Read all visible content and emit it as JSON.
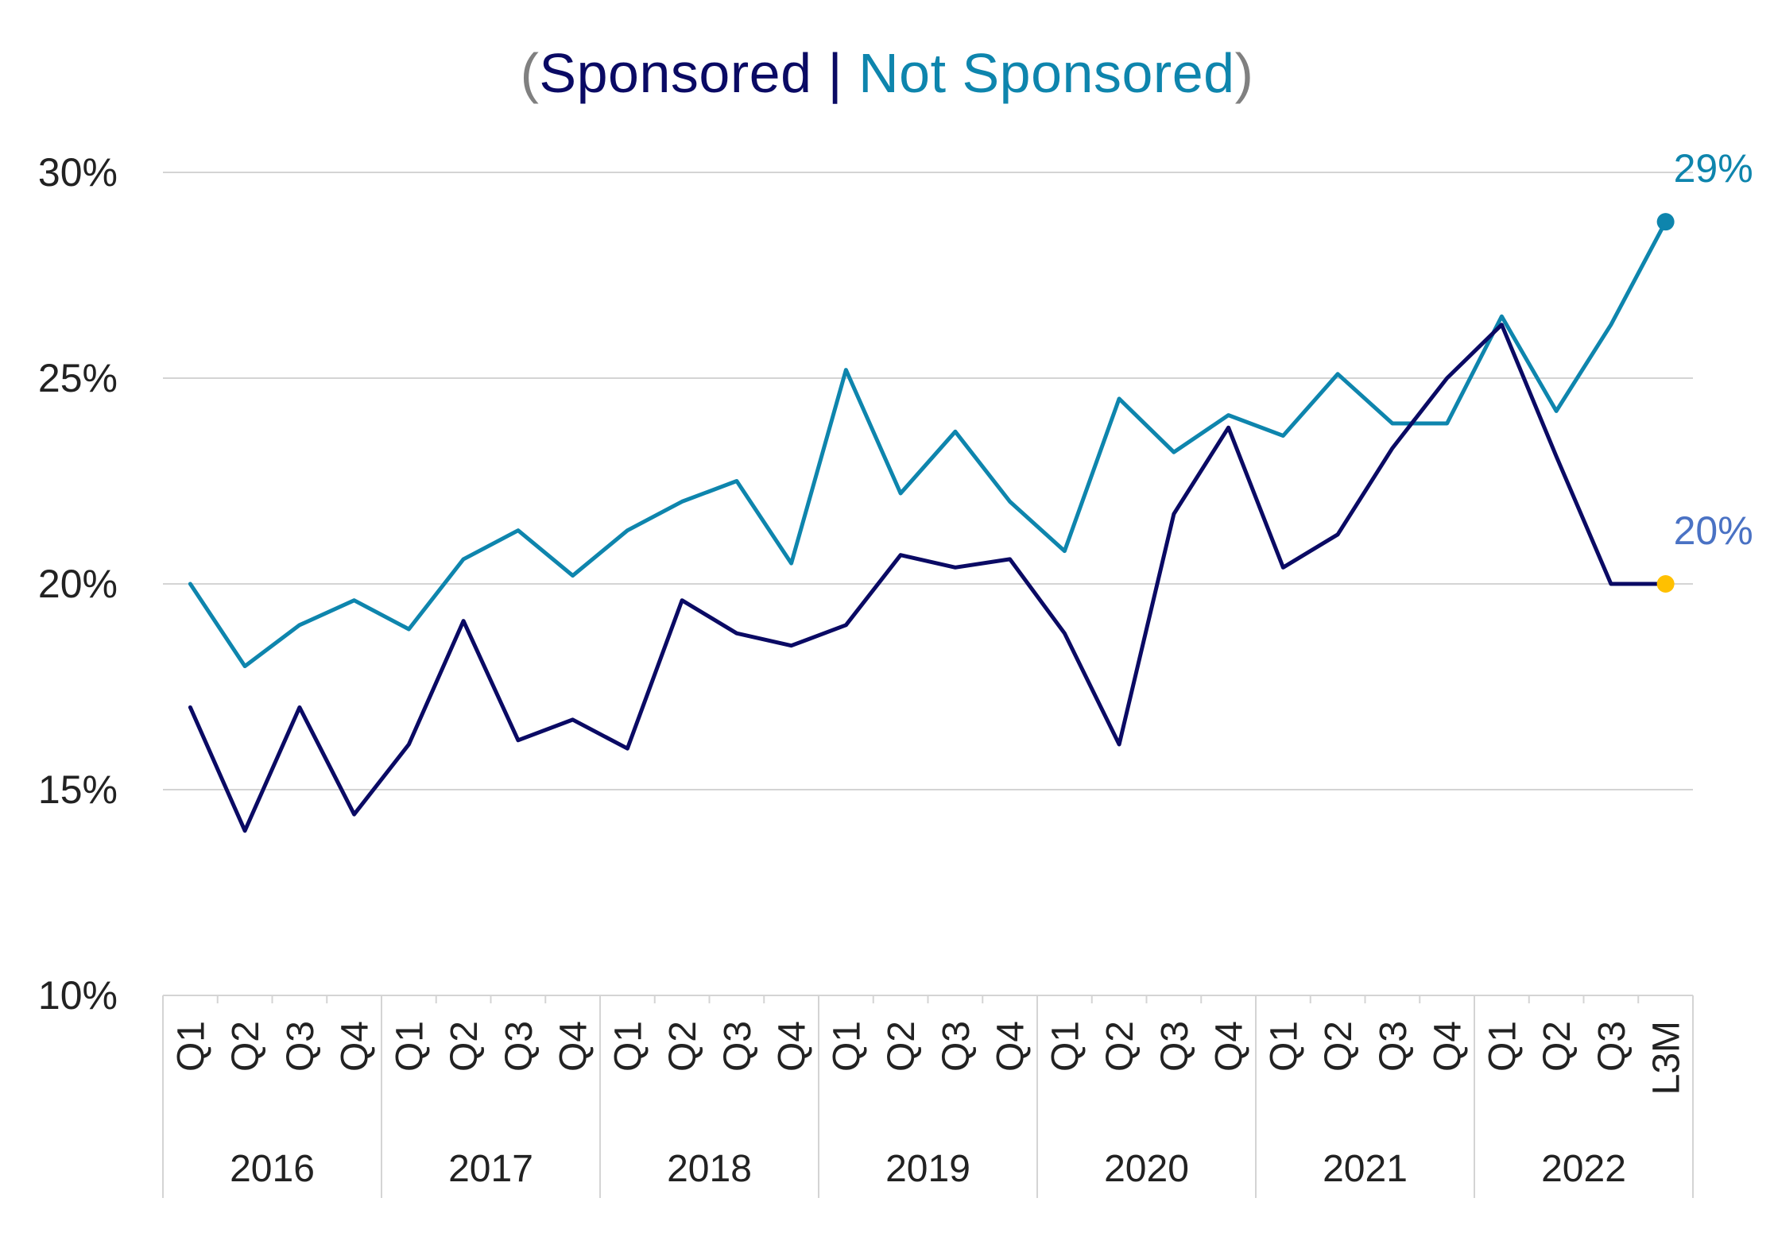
{
  "chart_data": {
    "type": "line",
    "title": {
      "open": "(",
      "series_a": "Sponsored",
      "sep": " | ",
      "series_b": "Not Sponsored",
      "close": ")"
    },
    "ylim": [
      10,
      30
    ],
    "yticks": [
      "10%",
      "15%",
      "20%",
      "25%",
      "30%"
    ],
    "ytick_values": [
      10,
      15,
      20,
      25,
      30
    ],
    "grid": true,
    "categories": [
      "Q1",
      "Q2",
      "Q3",
      "Q4",
      "Q1",
      "Q2",
      "Q3",
      "Q4",
      "Q1",
      "Q2",
      "Q3",
      "Q4",
      "Q1",
      "Q2",
      "Q3",
      "Q4",
      "Q1",
      "Q2",
      "Q3",
      "Q4",
      "Q1",
      "Q2",
      "Q3",
      "Q4",
      "Q1",
      "Q2",
      "Q3",
      "L3M"
    ],
    "groups": [
      {
        "label": "2016",
        "count": 4
      },
      {
        "label": "2017",
        "count": 4
      },
      {
        "label": "2018",
        "count": 4
      },
      {
        "label": "2019",
        "count": 4
      },
      {
        "label": "2020",
        "count": 4
      },
      {
        "label": "2021",
        "count": 4
      },
      {
        "label": "2022",
        "count": 4
      }
    ],
    "series": [
      {
        "name": "Sponsored",
        "color": "#0a0a64",
        "values": [
          17.0,
          14.0,
          17.0,
          14.4,
          16.1,
          19.1,
          16.2,
          16.7,
          16.0,
          19.6,
          18.8,
          18.5,
          19.0,
          20.7,
          20.4,
          20.6,
          18.8,
          16.1,
          21.7,
          23.8,
          20.4,
          21.2,
          23.3,
          25.0,
          26.3,
          23.1,
          20.0,
          20.0
        ],
        "end_label": "20%",
        "end_label_color": "#4a72c4",
        "end_marker_color": "#ffc000"
      },
      {
        "name": "Not Sponsored",
        "color": "#0e85ad",
        "values": [
          20.0,
          18.0,
          19.0,
          19.6,
          18.9,
          20.6,
          21.3,
          20.2,
          21.3,
          22.0,
          22.5,
          20.5,
          25.2,
          22.2,
          23.7,
          22.0,
          20.8,
          24.5,
          23.2,
          24.1,
          23.6,
          25.1,
          23.9,
          23.9,
          26.5,
          24.2,
          26.3,
          28.8
        ],
        "end_label": "29%",
        "end_label_color": "#0e85ad",
        "end_marker_color": "#0e85ad"
      }
    ]
  }
}
